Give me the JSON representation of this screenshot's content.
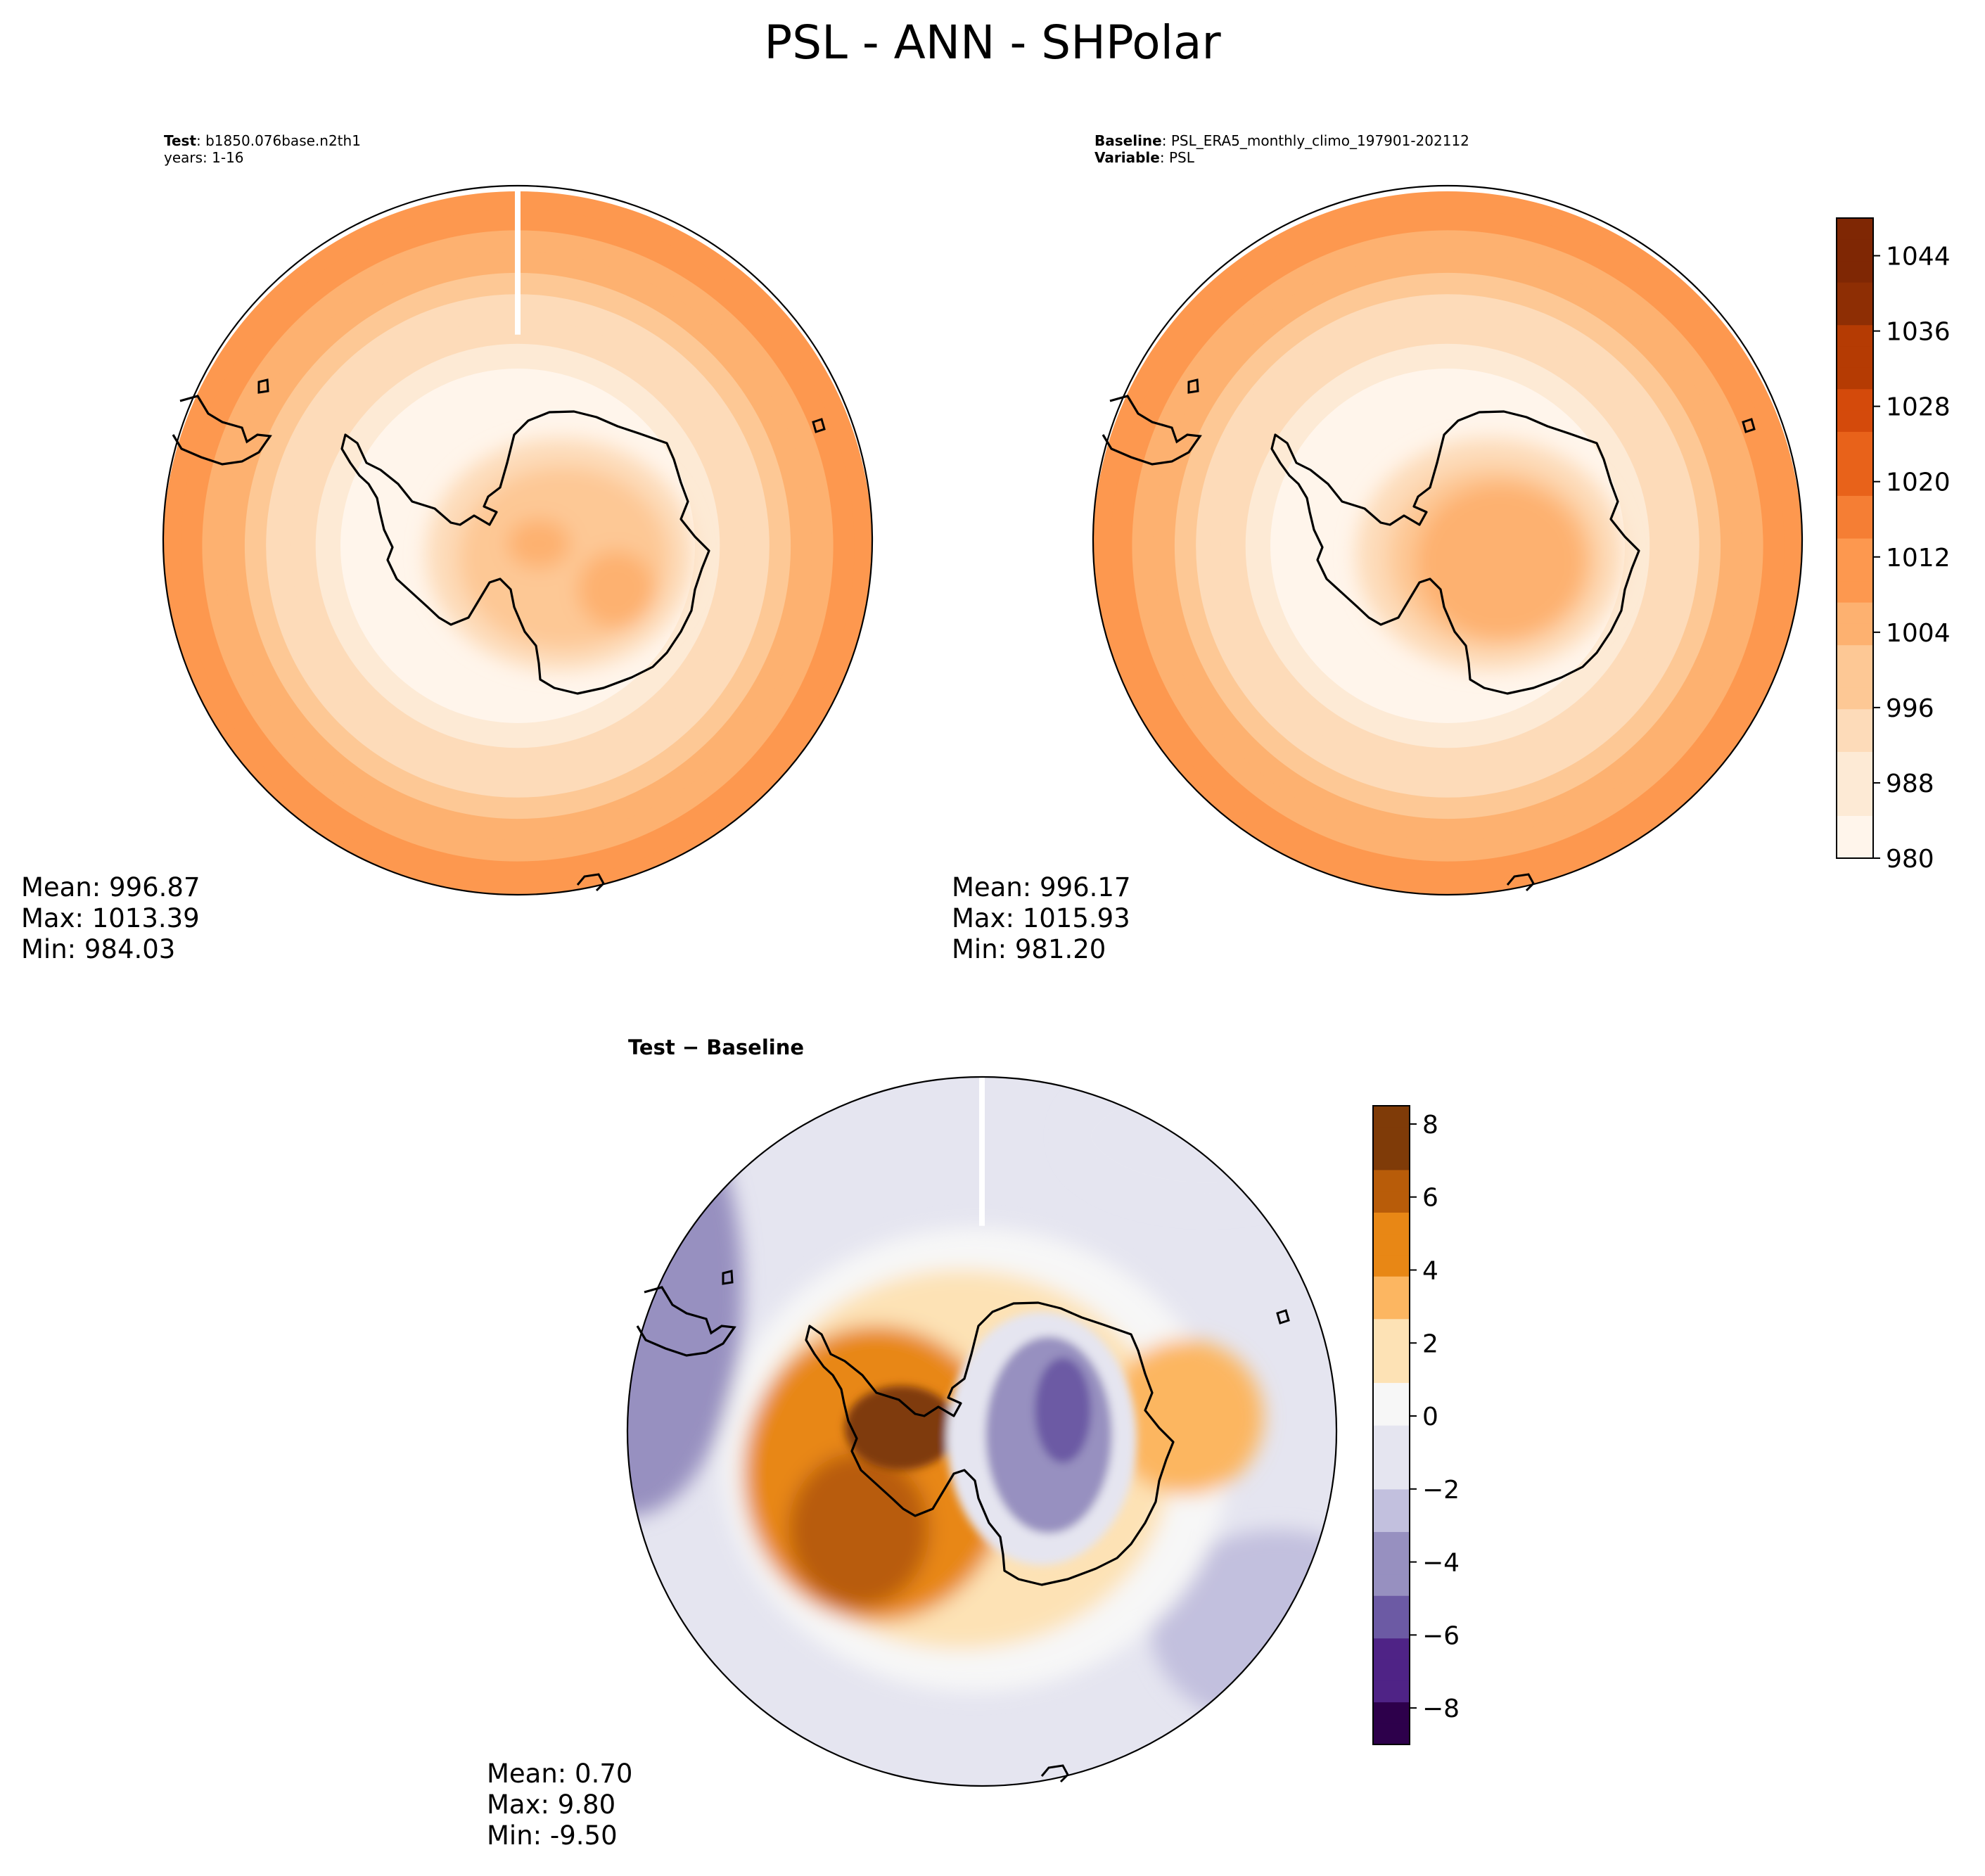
{
  "suptitle": "PSL - ANN - SHPolar",
  "colors": {
    "seq": [
      "#fff5eb",
      "#fdead5",
      "#fddbb9",
      "#fdc895",
      "#fdb170",
      "#fd984f",
      "#f57e34",
      "#e8621a",
      "#d44a0b",
      "#b53b03",
      "#8e2e04",
      "#7f2704"
    ],
    "div": [
      "#2d004b",
      "#4f2386",
      "#6c5aa4",
      "#9790c0",
      "#c2c0de",
      "#e5e5f0",
      "#f7f7f7",
      "#fde2b5",
      "#fcb661",
      "#e88715",
      "#b85c09",
      "#7f3b08"
    ],
    "coast": "#000000"
  },
  "panels": {
    "test": {
      "label_bold": "Test",
      "label_text": ": b1850.076base.n2th1",
      "years": "years: 1-16",
      "mean": "Mean: 996.87",
      "max": "Max: 1013.39",
      "min": "Min: 984.03"
    },
    "baseline": {
      "label_bold": "Baseline",
      "label_text": ": PSL_ERA5_monthly_climo_197901-202112",
      "var_bold": "Variable",
      "var_text": ": PSL",
      "mean": "Mean: 996.17",
      "max": "Max: 1015.93",
      "min": "Min: 981.20"
    },
    "diff": {
      "title": "Test − Baseline",
      "mean": "Mean:  0.70",
      "max": "Max:  9.80",
      "min": "Min: -9.50"
    }
  },
  "chart_data": [
    {
      "type": "heatmap",
      "subtype": "south-polar-stereographic-contour",
      "variable": "PSL",
      "case": "b1850.076base.n2th1",
      "years": "1-16",
      "colormap": "Oranges",
      "colorbar": {
        "min": 980,
        "max": 1048,
        "ticks": [
          980,
          988,
          996,
          1004,
          1012,
          1020,
          1028,
          1036,
          1044
        ]
      },
      "stats": {
        "mean": 996.87,
        "max": 1013.39,
        "min": 984.03
      }
    },
    {
      "type": "heatmap",
      "subtype": "south-polar-stereographic-contour",
      "variable": "PSL",
      "case": "PSL_ERA5_monthly_climo_197901-202112",
      "colormap": "Oranges",
      "colorbar": {
        "min": 980,
        "max": 1048,
        "ticks": [
          980,
          988,
          996,
          1004,
          1012,
          1020,
          1028,
          1036,
          1044
        ]
      },
      "stats": {
        "mean": 996.17,
        "max": 1015.93,
        "min": 981.2
      }
    },
    {
      "type": "heatmap",
      "subtype": "south-polar-stereographic-contour",
      "title": "Test − Baseline",
      "colormap": "PuOr_r",
      "colorbar": {
        "min": -9,
        "max": 8.5,
        "ticks": [
          -8,
          -6,
          -4,
          -2,
          0,
          2,
          4,
          6,
          8
        ],
        "tick_labels": [
          "−8",
          "−6",
          "−4",
          "−2",
          "0",
          "2",
          "4",
          "6",
          "8"
        ]
      },
      "stats": {
        "mean": 0.7,
        "max": 9.8,
        "min": -9.5
      }
    }
  ]
}
